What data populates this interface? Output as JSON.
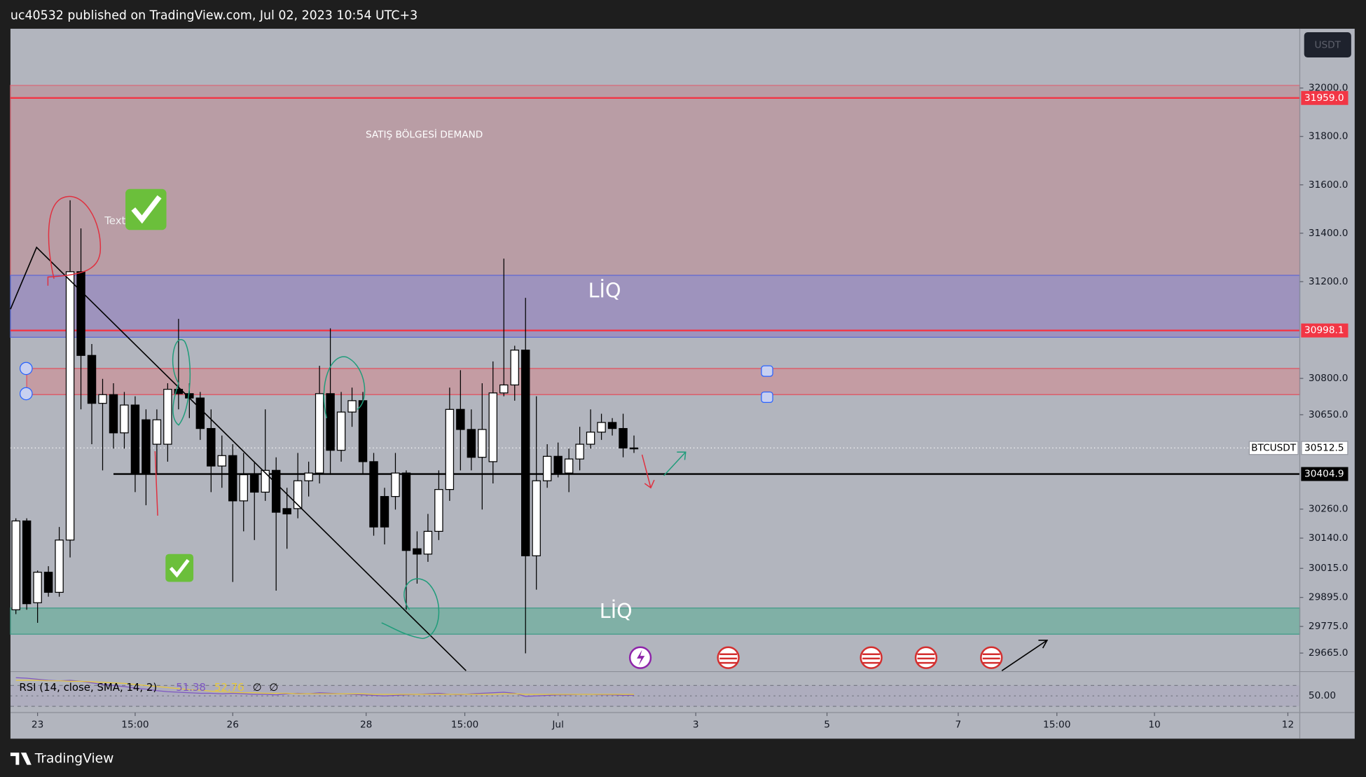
{
  "header": "uc40532 published on TradingView.com, Jul 02, 2023 10:54 UTC+3",
  "footer": "TradingView",
  "chart_data": {
    "type": "candlestick",
    "symbol": "BTCUSDT",
    "currency": "USDT",
    "up_color": "#ffffff",
    "down_color": "#000000",
    "x": [
      0,
      1,
      2,
      3,
      4,
      5,
      6,
      7,
      8,
      9,
      10,
      11,
      12,
      13,
      14,
      15,
      16,
      17,
      18,
      19,
      20,
      21,
      22,
      23,
      24,
      25,
      26,
      27,
      28,
      29,
      30,
      31,
      32,
      33,
      34,
      35,
      36,
      37,
      38,
      39,
      40,
      41,
      42,
      43,
      44,
      45,
      46,
      47,
      48,
      49,
      50,
      51,
      52,
      53,
      54,
      55,
      56,
      57
    ],
    "open": [
      29844,
      30211,
      29873,
      29999,
      29916,
      30132,
      31241,
      30895,
      30697,
      30733,
      30575,
      30690,
      30629,
      30528,
      30528,
      30755,
      30737,
      30719,
      30593,
      30438,
      30481,
      30294,
      30402,
      30330,
      30420,
      30262,
      30262,
      30377,
      30409,
      30737,
      30503,
      30661,
      30708,
      30456,
      30312,
      30312,
      30409,
      30096,
      30074,
      30168,
      30341,
      30672,
      30589,
      30474,
      30456,
      30740,
      30773,
      30917,
      30067,
      30377,
      30478,
      30409,
      30467,
      30528,
      30578,
      30618,
      30593,
      30512.5
    ],
    "high": [
      30222,
      30222,
      30006,
      30024,
      30186,
      31536,
      31420,
      30942,
      30798,
      30780,
      30744,
      30726,
      30672,
      30672,
      30780,
      31046,
      30780,
      30744,
      30672,
      30564,
      30528,
      30492,
      30456,
      30672,
      30474,
      30348,
      30492,
      30456,
      30852,
      31007,
      30744,
      30762,
      30744,
      30492,
      30348,
      30492,
      30420,
      30168,
      30240,
      30420,
      30762,
      30834,
      30672,
      30780,
      30870,
      31295,
      30935,
      31133,
      30726,
      30528,
      30535,
      30510,
      30600,
      30672,
      30654,
      30636,
      30654,
      30564
    ],
    "low": [
      29826,
      29844,
      29790,
      29898,
      29898,
      30060,
      30672,
      30528,
      30420,
      30510,
      30510,
      30330,
      30276,
      30402,
      30456,
      30672,
      30636,
      30546,
      30330,
      30348,
      29959,
      30168,
      30132,
      30294,
      29923,
      30096,
      30222,
      30312,
      30366,
      30402,
      30456,
      30600,
      30402,
      30150,
      30114,
      30258,
      29844,
      29952,
      30042,
      30132,
      30294,
      30420,
      30420,
      30258,
      30366,
      30726,
      30708,
      29664,
      29927,
      30348,
      30391,
      30330,
      30420,
      30510,
      30546,
      30564,
      30474,
      30492
    ],
    "close": [
      30211,
      29869,
      29999,
      29916,
      30132,
      31241,
      30895,
      30697,
      30733,
      30575,
      30690,
      30409,
      30409,
      30629,
      30755,
      30737,
      30719,
      30593,
      30438,
      30481,
      30294,
      30402,
      30330,
      30420,
      30247,
      30240,
      30377,
      30409,
      30737,
      30503,
      30661,
      30708,
      30456,
      30186,
      30186,
      30409,
      30089,
      30074,
      30168,
      30341,
      30672,
      30589,
      30474,
      30589,
      30740,
      30773,
      30917,
      30067,
      30377,
      30478,
      30409,
      30467,
      30528,
      30578,
      30618,
      30593,
      30512.5,
      30512.5
    ],
    "xlim": [
      -0.5,
      118.4
    ],
    "xticks": [
      {
        "value": 2,
        "label": "23"
      },
      {
        "value": 11,
        "label": "15:00"
      },
      {
        "value": 20,
        "label": "26"
      },
      {
        "value": 32.3,
        "label": "28"
      },
      {
        "value": 41.4,
        "label": "15:00"
      },
      {
        "value": 50,
        "label": "Jul"
      },
      {
        "value": 62.7,
        "label": "3"
      },
      {
        "value": 74.8,
        "label": "5"
      },
      {
        "value": 86.9,
        "label": "7"
      },
      {
        "value": 96,
        "label": "15:00"
      },
      {
        "value": 105,
        "label": "10"
      },
      {
        "value": 117.3,
        "label": "12"
      }
    ],
    "ylim": [
      29592,
      32245
    ],
    "yticks": [
      {
        "value": 32000,
        "label": "32000.0"
      },
      {
        "value": 31800,
        "label": "31800.0"
      },
      {
        "value": 31600,
        "label": "31600.0"
      },
      {
        "value": 31400,
        "label": "31400.0"
      },
      {
        "value": 31200,
        "label": "31200.0"
      },
      {
        "value": 30800,
        "label": "30800.0"
      },
      {
        "value": 30650,
        "label": "30650.0"
      },
      {
        "value": 30260,
        "label": "30260.0"
      },
      {
        "value": 30140,
        "label": "30140.0"
      },
      {
        "value": 30015,
        "label": "30015.0"
      },
      {
        "value": 29895,
        "label": "29895.0"
      },
      {
        "value": 29775,
        "label": "29775.0"
      },
      {
        "value": 29665,
        "label": "29665.0"
      }
    ],
    "zones": [
      {
        "from": 31226,
        "to": 32011,
        "color": "#b99da5",
        "border": "#d86a78"
      },
      {
        "from": 30970,
        "to": 31226,
        "color": "#9e93bd",
        "border": "#5b6bd6"
      },
      {
        "from": 29743,
        "to": 29851,
        "color": "#80b0a6",
        "border": "#3f9a86"
      },
      {
        "from": 30733,
        "to": 30841,
        "color": "#c49ca3",
        "border": "#e0505e",
        "x_start": 1
      }
    ],
    "price_lines": [
      {
        "value": 31959,
        "label": "31959.0",
        "color": "#f23645"
      },
      {
        "value": 30998.1,
        "label": "30998.1",
        "color": "#f23645"
      },
      {
        "value": 30512.5,
        "label": "30512.5",
        "color": "#ffffff",
        "dotted": true
      },
      {
        "value": 30404.9,
        "label": "30404.9",
        "color": "#000000",
        "x_start": 9
      }
    ],
    "annotations": [
      "SATIŞ BÖLGESİ DEMAND",
      "LİQ",
      "LİQ",
      "Text"
    ],
    "rsi": {
      "title": "RSI (14, close, SMA, 14, 2)",
      "ylim": [
        23,
        95
      ],
      "yticks": [
        {
          "value": 50,
          "label": "50.00"
        }
      ],
      "bands": [
        70,
        30
      ],
      "extras": [
        "∅",
        "∅"
      ],
      "series": [
        {
          "color": "#7e57c2",
          "values": [
            85,
            84,
            82,
            80,
            79,
            80,
            78,
            75,
            72,
            70,
            68,
            65,
            63,
            60,
            58,
            57,
            56,
            55,
            55,
            54,
            55,
            54,
            53,
            53,
            52,
            54,
            55,
            54,
            56,
            55,
            54,
            53,
            52,
            51,
            50,
            51,
            52,
            53,
            54,
            55,
            53,
            52,
            54,
            55,
            56,
            57,
            55,
            49,
            50,
            51,
            52,
            52,
            53,
            53,
            52,
            52,
            51,
            51.38
          ]
        },
        {
          "color": "#e8c93a",
          "values": [
            80,
            80,
            80,
            79,
            79,
            78,
            78,
            77,
            76,
            75,
            74,
            72,
            70,
            68,
            66,
            64,
            62,
            61,
            59,
            58,
            57,
            56,
            56,
            55,
            55,
            55,
            54,
            54,
            54,
            54,
            54,
            54,
            54,
            53,
            53,
            53,
            53,
            53,
            53,
            53,
            53,
            53,
            53,
            53,
            53,
            54,
            54,
            53,
            53,
            53,
            53,
            53,
            53,
            53,
            53,
            53,
            53,
            52.76
          ]
        }
      ]
    }
  }
}
